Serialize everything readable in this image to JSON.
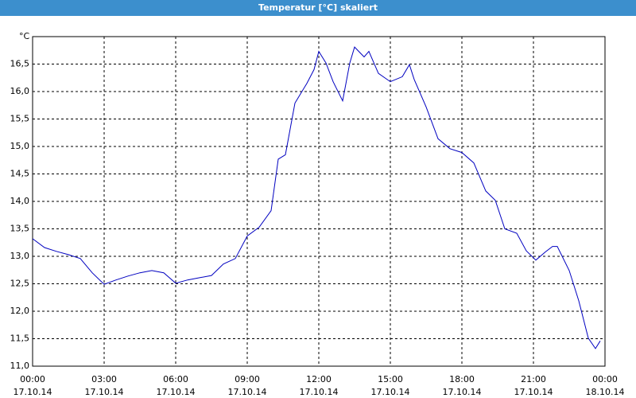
{
  "chart_data": {
    "type": "line",
    "title": "Temperatur [°C] skaliert",
    "y_unit": "°C",
    "color": "#0000c0",
    "grid": true,
    "xlim": [
      0,
      24
    ],
    "ylim": [
      11,
      17
    ],
    "xticks": [
      {
        "value": 0,
        "label": "00:00\n17.10.14"
      },
      {
        "value": 3,
        "label": "03:00\n17.10.14"
      },
      {
        "value": 6,
        "label": "06:00\n17.10.14"
      },
      {
        "value": 9,
        "label": "09:00\n17.10.14"
      },
      {
        "value": 12,
        "label": "12:00\n17.10.14"
      },
      {
        "value": 15,
        "label": "15:00\n17.10.14"
      },
      {
        "value": 18,
        "label": "18:00\n17.10.14"
      },
      {
        "value": 21,
        "label": "21:00\n17.10.14"
      },
      {
        "value": 24,
        "label": "00:00\n18.10.14"
      }
    ],
    "yticks": [
      {
        "value": 11,
        "label": "11,0"
      },
      {
        "value": 11.5,
        "label": "11,5"
      },
      {
        "value": 12,
        "label": "12,0"
      },
      {
        "value": 12.5,
        "label": "12,5"
      },
      {
        "value": 13,
        "label": "13,0"
      },
      {
        "value": 13.5,
        "label": "13,5"
      },
      {
        "value": 14,
        "label": "14,0"
      },
      {
        "value": 14.5,
        "label": "14,5"
      },
      {
        "value": 15,
        "label": "15,0"
      },
      {
        "value": 15.5,
        "label": "15,5"
      },
      {
        "value": 16,
        "label": "16,0"
      },
      {
        "value": 16.5,
        "label": "16,5"
      }
    ],
    "x": [
      0,
      0.5,
      1,
      1.5,
      2,
      2.5,
      3,
      3.5,
      4,
      4.5,
      5,
      5.5,
      6,
      6.5,
      7,
      7.5,
      8,
      8.5,
      9,
      9.5,
      10,
      10.3,
      10.6,
      11,
      11.5,
      11.8,
      12,
      12.3,
      12.6,
      13,
      13.3,
      13.5,
      13.9,
      14.1,
      14.5,
      15,
      15.5,
      15.8,
      16,
      16.5,
      17,
      17.5,
      18,
      18.5,
      19,
      19.4,
      19.8,
      20.3,
      20.7,
      21.1,
      21.5,
      21.8,
      22,
      22.5,
      22.9,
      23.3,
      23.6,
      23.8
    ],
    "values": [
      13.32,
      13.16,
      13.09,
      13.03,
      12.96,
      12.7,
      12.49,
      12.57,
      12.64,
      12.7,
      12.74,
      12.7,
      12.51,
      12.57,
      12.61,
      12.65,
      12.86,
      12.96,
      13.37,
      13.53,
      13.83,
      14.77,
      14.85,
      15.79,
      16.15,
      16.4,
      16.73,
      16.52,
      16.18,
      15.83,
      16.52,
      16.81,
      16.63,
      16.73,
      16.33,
      16.18,
      16.27,
      16.49,
      16.22,
      15.72,
      15.14,
      14.96,
      14.89,
      14.7,
      14.19,
      14.02,
      13.5,
      13.42,
      13.1,
      12.93,
      13.08,
      13.18,
      13.18,
      12.74,
      12.19,
      11.51,
      11.32,
      11.46
    ]
  }
}
